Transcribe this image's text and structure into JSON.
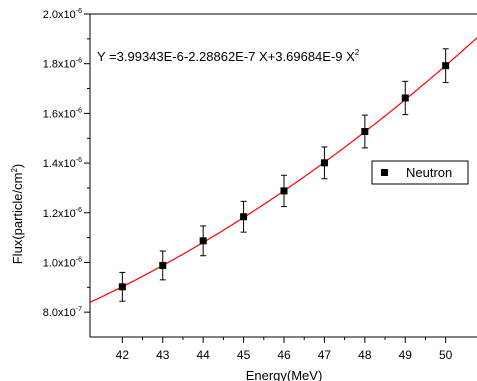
{
  "chart_data": {
    "type": "scatter",
    "title": "",
    "xlabel": "Energy(MeV)",
    "ylabel_main": "Flux(particle/cm",
    "ylabel_sup": "2",
    "ylabel_tail": ")",
    "xlim": [
      41.2,
      50.8
    ],
    "ylim": [
      7e-07,
      2e-06
    ],
    "x_ticks": [
      42,
      43,
      44,
      45,
      46,
      47,
      48,
      49,
      50
    ],
    "x_tick_labels": [
      "42",
      "43",
      "44",
      "45",
      "46",
      "47",
      "48",
      "49",
      "50"
    ],
    "y_ticks": [
      8e-07,
      1e-06,
      1.2e-06,
      1.4e-06,
      1.6e-06,
      1.8e-06,
      2e-06
    ],
    "y_tick_labels": [
      {
        "mant": "8.0x10",
        "exp": "-7"
      },
      {
        "mant": "1.0x10",
        "exp": "-6"
      },
      {
        "mant": "1.2x10",
        "exp": "-6"
      },
      {
        "mant": "1.4x10",
        "exp": "-6"
      },
      {
        "mant": "1.6x10",
        "exp": "-6"
      },
      {
        "mant": "1.8x10",
        "exp": "-6"
      },
      {
        "mant": "2.0x10",
        "exp": "-6"
      }
    ],
    "series": [
      {
        "name": "Neutron",
        "marker": "square",
        "color": "#000000",
        "x": [
          42,
          43,
          44,
          45,
          46,
          47,
          48,
          49,
          50
        ],
        "y": [
          9.02e-07,
          9.88e-07,
          1.087e-06,
          1.184e-06,
          1.288e-06,
          1.401e-06,
          1.527e-06,
          1.662e-06,
          1.792e-06
        ],
        "error": [
          5.8e-08,
          5.8e-08,
          6e-08,
          6.2e-08,
          6.3e-08,
          6.4e-08,
          6.6e-08,
          6.7e-08,
          6.8e-08
        ]
      }
    ],
    "fit": {
      "color": "#ff0000",
      "coefficients": [
        3.99343e-06,
        -2.28862e-07,
        3.69684e-09
      ],
      "equation_main": "Y =3.99343E-6-2.28862E-7 X+3.69684E-9 X",
      "equation_sup": "2"
    },
    "legend": {
      "position": "right",
      "label": "Neutron"
    },
    "grid": false
  }
}
